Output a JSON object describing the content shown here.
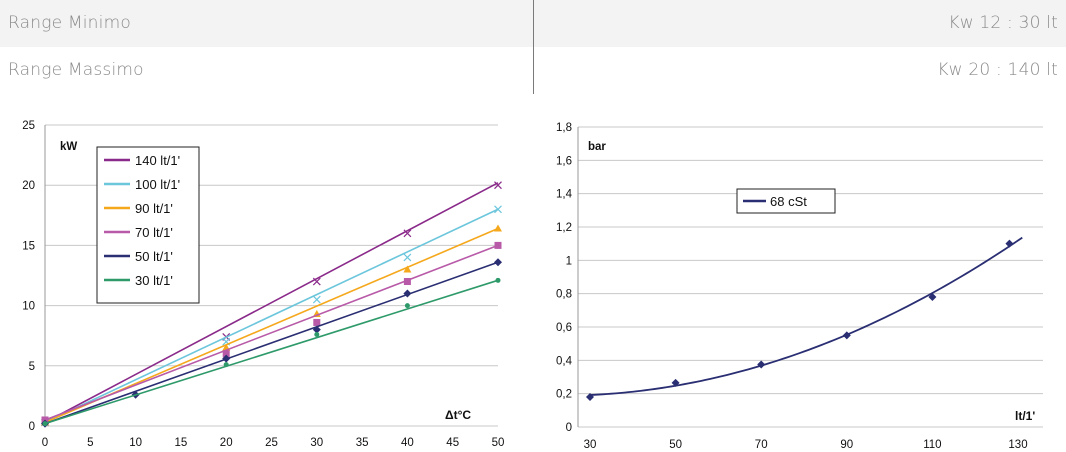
{
  "specs": {
    "rows": [
      {
        "label": "Range Minimo",
        "value": "Kw 12 : 30 lt"
      },
      {
        "label": "Range Massimo",
        "value": "Kw 20 : 140 lt"
      }
    ]
  },
  "chart_data": [
    {
      "type": "line",
      "ylabel": "kW",
      "xlabel": "Δt°C",
      "xlim": [
        0,
        50
      ],
      "ylim": [
        0,
        25
      ],
      "xticks": [
        0,
        5,
        10,
        15,
        20,
        25,
        30,
        35,
        40,
        45,
        50
      ],
      "xtick_labels": [
        "0",
        "5",
        "10",
        "15",
        "20",
        "25",
        "30",
        "35",
        "40",
        "45",
        "50"
      ],
      "yticks": [
        0,
        5,
        10,
        15,
        20,
        25
      ],
      "ytick_labels": [
        "0",
        "5",
        "10",
        "15",
        "20",
        "25"
      ],
      "grid": "horizontal",
      "legend_position": "top-left",
      "series": [
        {
          "name": "140 lt/1'",
          "color": "#8a2a8a",
          "marker": "x",
          "x": [
            0,
            20,
            30,
            40,
            50
          ],
          "y": [
            0.3,
            7.4,
            12.0,
            16.0,
            20.0
          ],
          "fit_end": 20.2
        },
        {
          "name": "100 lt/1'",
          "color": "#6cc6dc",
          "marker": "x",
          "x": [
            0,
            20,
            30,
            40,
            50
          ],
          "y": [
            0.3,
            7.0,
            10.5,
            14.0,
            18.0
          ],
          "fit_end": 18.0
        },
        {
          "name": "90 lt/1'",
          "color": "#f5a81c",
          "marker": "triangle",
          "x": [
            0,
            20,
            30,
            40,
            50
          ],
          "y": [
            0.3,
            6.5,
            9.3,
            13.0,
            16.4
          ],
          "fit_end": 16.4
        },
        {
          "name": "70 lt/1'",
          "color": "#b85aa8",
          "marker": "square",
          "x": [
            0,
            20,
            30,
            40,
            50
          ],
          "y": [
            0.5,
            6.0,
            8.6,
            12.0,
            15.0
          ],
          "fit_end": 15.0
        },
        {
          "name": "50 lt/1'",
          "color": "#2a2e72",
          "marker": "diamond",
          "x": [
            0,
            10,
            20,
            30,
            40,
            50
          ],
          "y": [
            0.2,
            2.6,
            5.6,
            8.0,
            11.0,
            13.6
          ],
          "fit_end": 13.6
        },
        {
          "name": "30 lt/1'",
          "color": "#2e9a6a",
          "marker": "dot",
          "x": [
            0,
            20,
            30,
            40,
            50
          ],
          "y": [
            0.2,
            5.1,
            7.6,
            10.0,
            12.1
          ],
          "fit_end": 12.1
        }
      ]
    },
    {
      "type": "line",
      "ylabel": "bar",
      "xlabel": "lt/1'",
      "xlim": [
        30,
        130
      ],
      "ylim": [
        0,
        1.8
      ],
      "xticks": [
        30,
        50,
        70,
        90,
        110,
        130
      ],
      "xtick_labels": [
        "30",
        "50",
        "70",
        "90",
        "110",
        "130"
      ],
      "yticks": [
        0,
        0.2,
        0.4,
        0.6,
        0.8,
        1.0,
        1.2,
        1.4,
        1.6,
        1.8
      ],
      "ytick_labels": [
        "0",
        "0,2",
        "0,4",
        "0,6",
        "0,8",
        "1",
        "1,2",
        "1,4",
        "1,6",
        "1,8"
      ],
      "grid": "horizontal",
      "legend_position": "top-center",
      "series": [
        {
          "name": "68 cSt",
          "color": "#2a2e72",
          "marker": "diamond",
          "x": [
            30,
            50,
            70,
            90,
            110,
            128
          ],
          "y": [
            0.18,
            0.265,
            0.375,
            0.55,
            0.78,
            1.1
          ],
          "curve_end": [
            131,
            1.2
          ]
        }
      ]
    }
  ]
}
